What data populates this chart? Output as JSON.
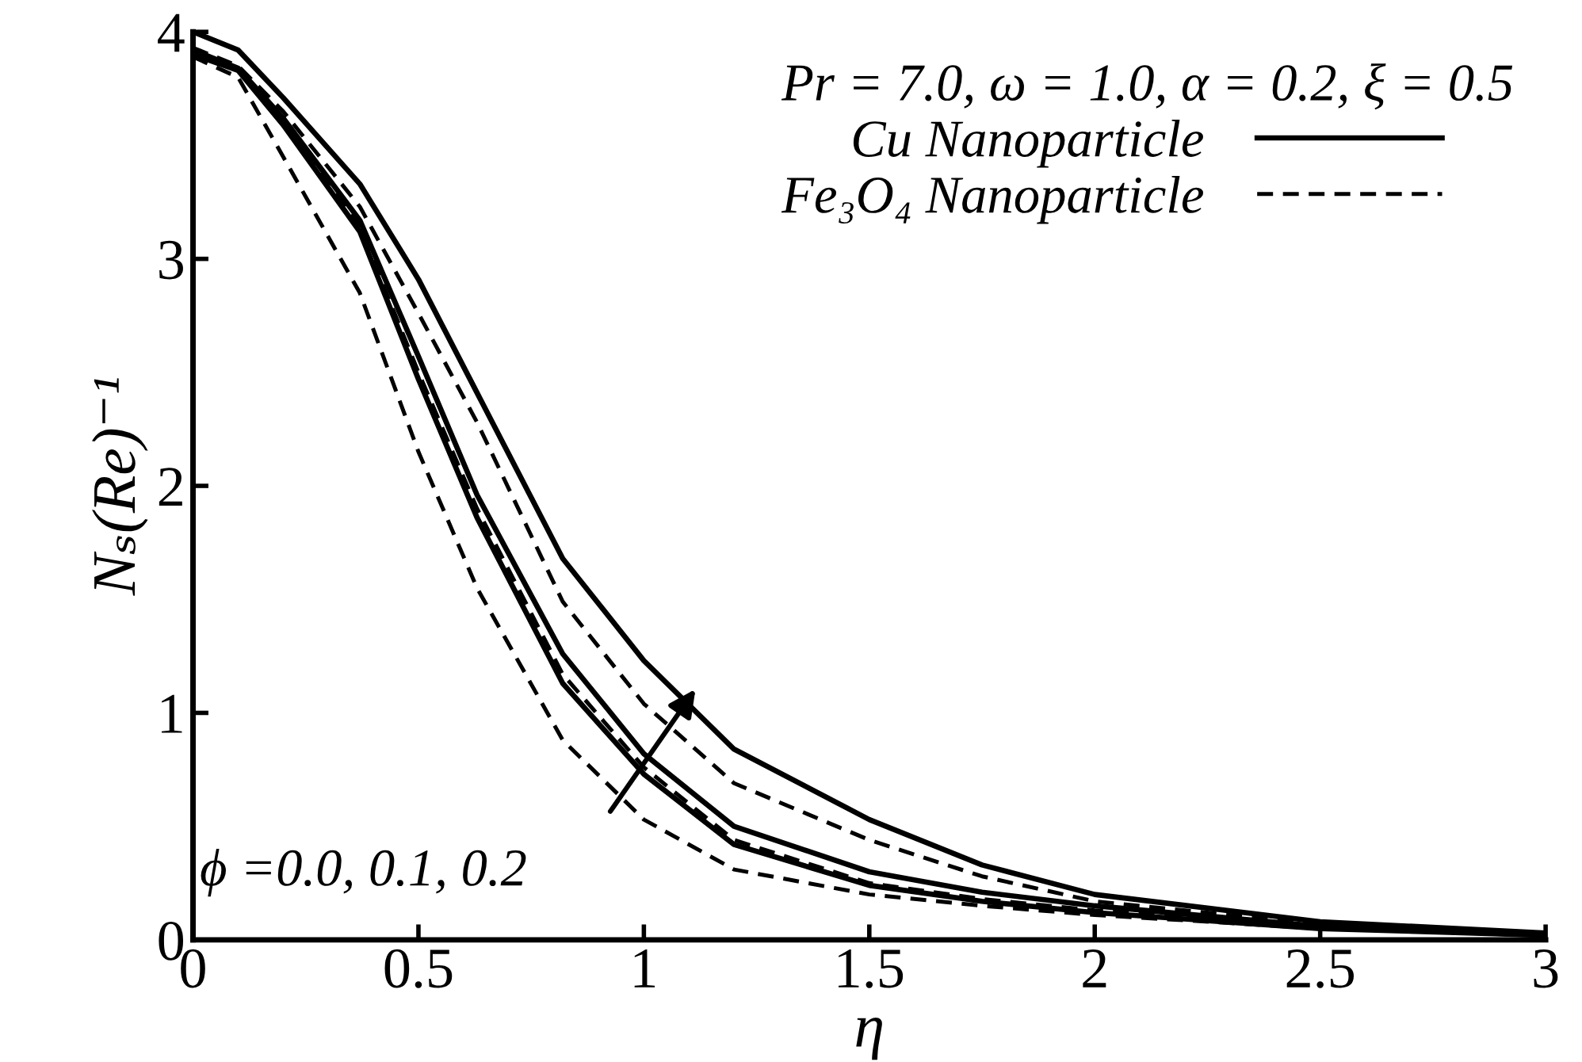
{
  "chart_data": {
    "type": "line",
    "xlabel": "η",
    "ylabel": "Nₛ(Re)⁻¹",
    "legend_title": "Pr = 7.0, ω = 1.0, α = 0.2, ξ = 0.5",
    "annotations": [
      "ϕ =0.0, 0.1, 0.2"
    ],
    "x": [
      0,
      0.1,
      0.2,
      0.37,
      0.5,
      0.63,
      0.82,
      1.0,
      1.2,
      1.5,
      1.75,
      2,
      2.5,
      3
    ],
    "series": [
      {
        "name": "Cu Nanoparticle",
        "color": "#000000",
        "line_style": "solid",
        "values": [
          4.0,
          3.92,
          3.71,
          3.33,
          2.91,
          2.41,
          1.68,
          1.23,
          0.84,
          0.53,
          0.33,
          0.2,
          0.08,
          0.03
        ]
      },
      {
        "name": "Fe₃O₄ Nanoparticle",
        "color": "#000000",
        "line_style": "dashed",
        "values": [
          3.93,
          3.85,
          3.65,
          3.23,
          2.76,
          2.28,
          1.49,
          1.04,
          0.69,
          0.44,
          0.28,
          0.17,
          0.07,
          0.03
        ]
      },
      {
        "color": "#000000",
        "line_style": "solid",
        "values": [
          3.92,
          3.84,
          3.62,
          3.17,
          2.57,
          1.96,
          1.26,
          0.82,
          0.5,
          0.3,
          0.21,
          0.15,
          0.06,
          0.02
        ]
      },
      {
        "color": "#000000",
        "line_style": "dashed",
        "values": [
          3.91,
          3.83,
          3.6,
          3.14,
          2.5,
          1.9,
          1.17,
          0.76,
          0.44,
          0.25,
          0.18,
          0.13,
          0.06,
          0.02
        ]
      },
      {
        "color": "#000000",
        "line_style": "solid",
        "values": [
          3.9,
          3.83,
          3.59,
          3.12,
          2.47,
          1.86,
          1.13,
          0.73,
          0.42,
          0.24,
          0.17,
          0.12,
          0.05,
          0.02
        ]
      },
      {
        "color": "#000000",
        "line_style": "dashed",
        "values": [
          3.89,
          3.8,
          3.45,
          2.85,
          2.15,
          1.55,
          0.88,
          0.53,
          0.31,
          0.2,
          0.15,
          0.11,
          0.05,
          0.02
        ]
      }
    ],
    "xlim": [
      0,
      3
    ],
    "ylim": [
      0,
      4
    ],
    "xticks": [
      0,
      0.5,
      1,
      1.5,
      2,
      2.5,
      3
    ],
    "yticks": [
      0,
      1,
      2,
      3,
      4
    ],
    "grid": false,
    "legend": "top right",
    "marker": "none"
  }
}
